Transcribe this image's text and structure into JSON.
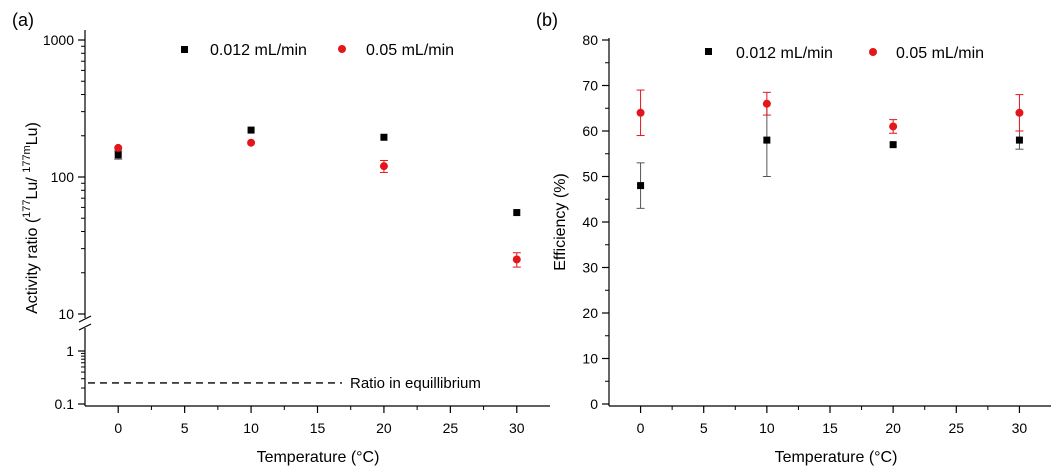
{
  "chart_data": [
    {
      "panel_label": "(a)",
      "type": "scatter",
      "xlabel": "Temperature (°C)",
      "ylabel_parts": [
        "Activity ratio (",
        "177",
        "Lu/ ",
        "177m",
        "Lu)"
      ],
      "x_ticks": [
        "0",
        "5",
        "10",
        "15",
        "20",
        "25",
        "30"
      ],
      "xlim": [
        -2.5,
        32.5
      ],
      "yscale": "log",
      "upper_ticks": [
        "10",
        "100",
        "1000"
      ],
      "lower_ticks": [
        "0.1",
        "1"
      ],
      "ylim_upper": [
        10,
        1000
      ],
      "ylim_lower": [
        0.1,
        1
      ],
      "axis_break": true,
      "legend_position": "top",
      "series": [
        {
          "name": "0.012 mL/min",
          "marker": "square",
          "color": "#000000",
          "x": [
            0,
            10,
            20,
            30
          ],
          "y": [
            145,
            220,
            195,
            55
          ],
          "err": [
            10,
            0,
            0,
            0
          ]
        },
        {
          "name": "0.05 mL/min",
          "marker": "circle",
          "color": "#e3161c",
          "x": [
            0,
            10,
            20,
            30
          ],
          "y": [
            163,
            178,
            120,
            25
          ],
          "err": [
            0,
            0,
            12,
            3
          ]
        }
      ],
      "reference_line": {
        "label": "Ratio in equillibrium",
        "y": 0.25
      }
    },
    {
      "panel_label": "(b)",
      "type": "scatter",
      "xlabel": "Temperature (°C)",
      "ylabel": "Efficiency (%)",
      "x_ticks": [
        "0",
        "5",
        "10",
        "15",
        "20",
        "25",
        "30"
      ],
      "y_ticks": [
        "0",
        "10",
        "20",
        "30",
        "40",
        "50",
        "60",
        "70",
        "80"
      ],
      "xlim": [
        -2.5,
        32.5
      ],
      "ylim": [
        0,
        80
      ],
      "legend_position": "top",
      "series": [
        {
          "name": "0.012 mL/min",
          "marker": "square",
          "color": "#000000",
          "x": [
            0,
            10,
            20,
            30
          ],
          "y": [
            48,
            58,
            57,
            58
          ],
          "err": [
            5,
            8,
            0,
            2
          ]
        },
        {
          "name": "0.05 mL/min",
          "marker": "circle",
          "color": "#e3161c",
          "x": [
            0,
            10,
            20,
            30
          ],
          "y": [
            64,
            66,
            61,
            64
          ],
          "err": [
            5,
            2.5,
            1.5,
            4
          ]
        }
      ]
    }
  ]
}
